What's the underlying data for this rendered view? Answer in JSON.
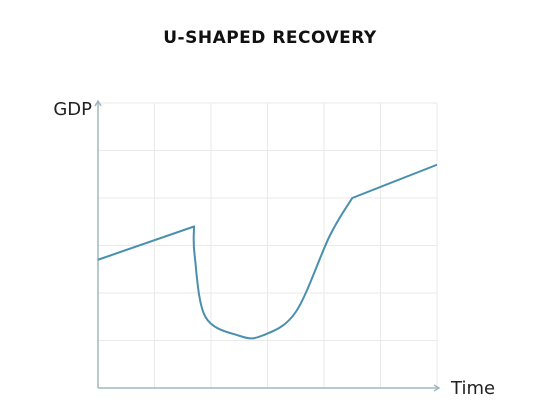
{
  "chart_data": {
    "type": "line",
    "title": "U-SHAPED RECOVERY",
    "xlabel": "Time",
    "ylabel": "GDP",
    "grid": true,
    "legend": "none",
    "xlim": [
      0,
      6
    ],
    "ylim": [
      0,
      6
    ],
    "series": [
      {
        "values": [
          {
            "x": 0.0,
            "y": 2.7
          },
          {
            "x": 1.7,
            "y": 3.4
          },
          {
            "x": 1.71,
            "y": 2.8
          },
          {
            "x": 1.9,
            "y": 1.5
          },
          {
            "x": 2.5,
            "y": 1.1
          },
          {
            "x": 2.9,
            "y": 1.1
          },
          {
            "x": 3.5,
            "y": 1.6
          },
          {
            "x": 4.1,
            "y": 3.2
          },
          {
            "x": 4.5,
            "y": 4.0
          },
          {
            "x": 6.0,
            "y": 4.7
          }
        ]
      }
    ]
  },
  "colors": {
    "line": "#4a8fae",
    "axis": "#9fb8bf",
    "grid": "#eaeaea",
    "text": "#222222"
  }
}
